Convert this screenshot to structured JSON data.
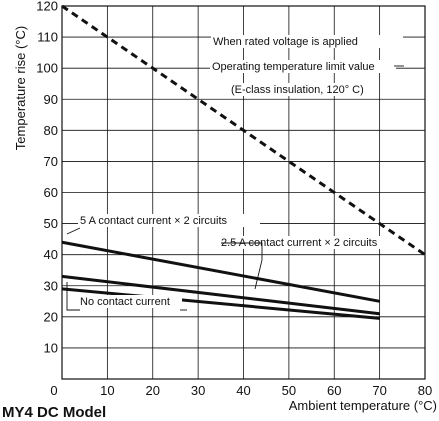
{
  "chart_data": {
    "type": "line",
    "xlabel": "Ambient temperature (°C)",
    "ylabel": "Temperature rise (°C)",
    "xlim": [
      0,
      80
    ],
    "ylim": [
      0,
      120
    ],
    "xticks": [
      0,
      10,
      20,
      30,
      40,
      50,
      60,
      70,
      80
    ],
    "yticks": [
      10,
      20,
      30,
      40,
      50,
      60,
      70,
      80,
      90,
      100,
      110,
      120
    ],
    "grid": true,
    "series": [
      {
        "name": "Operating temperature limit value",
        "style": "dashed",
        "x": [
          0,
          80
        ],
        "y": [
          120,
          40
        ]
      },
      {
        "name": "5 A contact current × 2 circuits",
        "style": "solid",
        "x": [
          0,
          70
        ],
        "y": [
          44,
          25
        ]
      },
      {
        "name": "2.5 A contact current × 2 circuits",
        "style": "solid",
        "x": [
          0,
          70
        ],
        "y": [
          33,
          21
        ]
      },
      {
        "name": "No contact current",
        "style": "solid",
        "x": [
          0,
          70
        ],
        "y": [
          29,
          19.5
        ]
      }
    ],
    "annotations": {
      "rated_voltage": "When rated voltage is applied",
      "limit_line1": "Operating temperature limit value",
      "limit_line2": "(E-class insulation, 120° C)",
      "contact_5a": "5 A contact current × 2 circuits",
      "contact_25a": "2.5 A contact current × 2 circuits",
      "no_contact": "No contact current"
    }
  },
  "caption": "MY4 DC Model"
}
